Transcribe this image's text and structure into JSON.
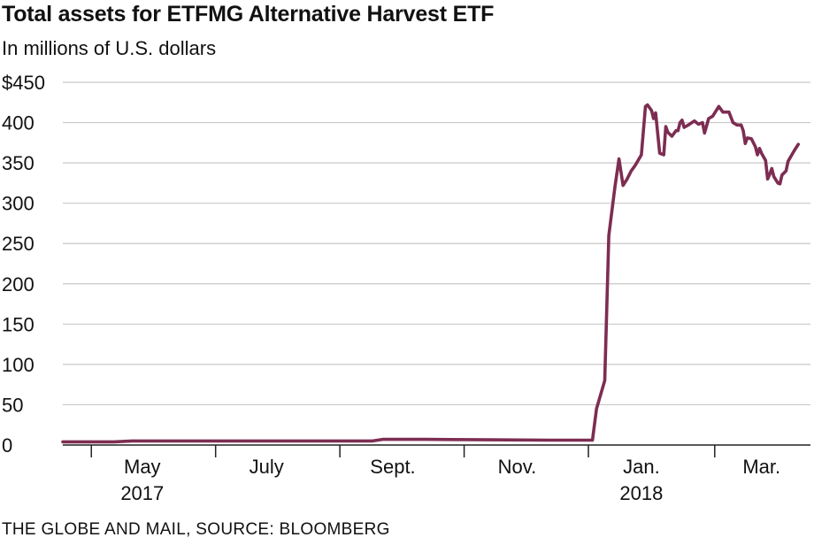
{
  "header": {
    "title": "Total assets for ETFMG Alternative Harvest ETF",
    "subtitle": "In millions of U.S. dollars"
  },
  "footer": {
    "source": "THE GLOBE AND MAIL, SOURCE: BLOOMBERG"
  },
  "colors": {
    "line": "#7d2d52",
    "grid": "#c8c8c8",
    "axis": "#222222"
  },
  "chart_data": {
    "type": "line",
    "title": "Total assets for ETFMG Alternative Harvest ETF",
    "subtitle": "In millions of U.S. dollars",
    "xlabel": "",
    "ylabel": "",
    "ylim": [
      0,
      450
    ],
    "xlim": [
      "2017-04-06",
      "2018-04-08"
    ],
    "grid": true,
    "y_ticks": [
      0,
      50,
      100,
      150,
      200,
      250,
      300,
      350,
      400,
      450
    ],
    "y_tick_labels": [
      "0",
      "50",
      "100",
      "150",
      "200",
      "250",
      "300",
      "350",
      "400",
      "$450"
    ],
    "x_ticks": [
      {
        "date": "2017-04-20",
        "label": "",
        "year": ""
      },
      {
        "date": "2017-05-15",
        "label": "May",
        "year": "2017"
      },
      {
        "date": "2017-06-20",
        "label": "",
        "year": ""
      },
      {
        "date": "2017-07-15",
        "label": "July",
        "year": ""
      },
      {
        "date": "2017-08-20",
        "label": "",
        "year": ""
      },
      {
        "date": "2017-09-15",
        "label": "Sept.",
        "year": ""
      },
      {
        "date": "2017-10-20",
        "label": "",
        "year": ""
      },
      {
        "date": "2017-11-15",
        "label": "Nov.",
        "year": ""
      },
      {
        "date": "2017-12-20",
        "label": "",
        "year": ""
      },
      {
        "date": "2018-01-15",
        "label": "Jan.",
        "year": "2018"
      },
      {
        "date": "2018-02-20",
        "label": "",
        "year": ""
      },
      {
        "date": "2018-03-15",
        "label": "Mar.",
        "year": ""
      }
    ],
    "series": [
      {
        "name": "",
        "points": [
          [
            "2017-04-06",
            4
          ],
          [
            "2017-04-20",
            4
          ],
          [
            "2017-05-01",
            4
          ],
          [
            "2017-05-10",
            5
          ],
          [
            "2017-06-01",
            5
          ],
          [
            "2017-07-01",
            5
          ],
          [
            "2017-08-01",
            5
          ],
          [
            "2017-09-05",
            5
          ],
          [
            "2017-09-10",
            7
          ],
          [
            "2017-10-01",
            7
          ],
          [
            "2017-11-01",
            6.5
          ],
          [
            "2017-12-01",
            6
          ],
          [
            "2017-12-20",
            6
          ],
          [
            "2017-12-22",
            6
          ],
          [
            "2017-12-24",
            45
          ],
          [
            "2017-12-28",
            80
          ],
          [
            "2017-12-30",
            260
          ],
          [
            "2018-01-02",
            320
          ],
          [
            "2018-01-04",
            355
          ],
          [
            "2018-01-06",
            322
          ],
          [
            "2018-01-08",
            330
          ],
          [
            "2018-01-10",
            340
          ],
          [
            "2018-01-12",
            347
          ],
          [
            "2018-01-15",
            360
          ],
          [
            "2018-01-17",
            420
          ],
          [
            "2018-01-18",
            422
          ],
          [
            "2018-01-20",
            415
          ],
          [
            "2018-01-21",
            405
          ],
          [
            "2018-01-22",
            412
          ],
          [
            "2018-01-24",
            362
          ],
          [
            "2018-01-26",
            360
          ],
          [
            "2018-01-27",
            395
          ],
          [
            "2018-01-28",
            388
          ],
          [
            "2018-01-30",
            383
          ],
          [
            "2018-02-01",
            390
          ],
          [
            "2018-02-02",
            390
          ],
          [
            "2018-02-03",
            400
          ],
          [
            "2018-02-04",
            403
          ],
          [
            "2018-02-05",
            394
          ],
          [
            "2018-02-07",
            397
          ],
          [
            "2018-02-10",
            402
          ],
          [
            "2018-02-12",
            398
          ],
          [
            "2018-02-14",
            400
          ],
          [
            "2018-02-15",
            387
          ],
          [
            "2018-02-17",
            405
          ],
          [
            "2018-02-19",
            408
          ],
          [
            "2018-02-22",
            420
          ],
          [
            "2018-02-24",
            413
          ],
          [
            "2018-02-27",
            413
          ],
          [
            "2018-03-01",
            400
          ],
          [
            "2018-03-03",
            397
          ],
          [
            "2018-03-05",
            397
          ],
          [
            "2018-03-06",
            390
          ],
          [
            "2018-03-07",
            374
          ],
          [
            "2018-03-08",
            381
          ],
          [
            "2018-03-10",
            380
          ],
          [
            "2018-03-12",
            370
          ],
          [
            "2018-03-13",
            360
          ],
          [
            "2018-03-14",
            368
          ],
          [
            "2018-03-15",
            362
          ],
          [
            "2018-03-17",
            353
          ],
          [
            "2018-03-18",
            330
          ],
          [
            "2018-03-19",
            336
          ],
          [
            "2018-03-20",
            343
          ],
          [
            "2018-03-21",
            333
          ],
          [
            "2018-03-23",
            325
          ],
          [
            "2018-03-24",
            324
          ],
          [
            "2018-03-25",
            335
          ],
          [
            "2018-03-27",
            340
          ],
          [
            "2018-03-28",
            352
          ],
          [
            "2018-03-31",
            365
          ],
          [
            "2018-04-02",
            373
          ]
        ]
      }
    ]
  }
}
